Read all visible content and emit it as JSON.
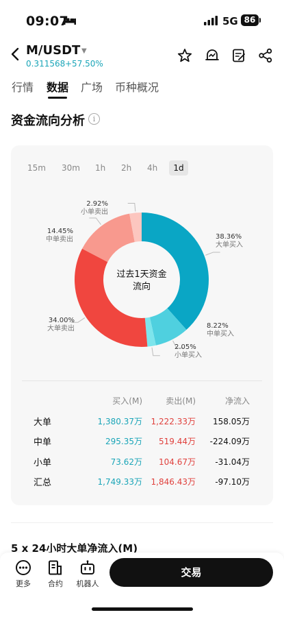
{
  "status": {
    "time": "09:07",
    "network": "5G",
    "battery": "86"
  },
  "header": {
    "pair": "M/USDT",
    "price": "0.311568",
    "change": "+57.50%",
    "icons": [
      "star-icon",
      "alert-icon",
      "note-icon",
      "share-icon"
    ]
  },
  "tabs": [
    {
      "label": "行情"
    },
    {
      "label": "数据"
    },
    {
      "label": "广场"
    },
    {
      "label": "币种概况"
    }
  ],
  "section": {
    "title": "资金流向分析",
    "info": "i"
  },
  "intervals": [
    "15m",
    "30m",
    "1h",
    "2h",
    "4h",
    "1d"
  ],
  "selected_interval": "1d",
  "donut": {
    "center_line1": "过去1天资金",
    "center_line2": "流向",
    "segments": [
      {
        "pct": "38.36%",
        "label": "大单买入",
        "value": 38.36,
        "color": "#0aa6c5"
      },
      {
        "pct": "8.22%",
        "label": "中单买入",
        "value": 8.22,
        "color": "#4fd0df"
      },
      {
        "pct": "2.05%",
        "label": "小单买入",
        "value": 2.05,
        "color": "#7de5ec"
      },
      {
        "pct": "34.00%",
        "label": "大单卖出",
        "value": 34.0,
        "color": "#f0463f"
      },
      {
        "pct": "14.45%",
        "label": "中单卖出",
        "value": 14.45,
        "color": "#f8998e"
      },
      {
        "pct": "2.92%",
        "label": "小单卖出",
        "value": 2.92,
        "color": "#fcc6bf"
      }
    ]
  },
  "table": {
    "headers": {
      "buy": "买入(M)",
      "sell": "卖出(M)",
      "net": "净流入"
    },
    "rows": [
      {
        "label": "大单",
        "buy": "1,380.37万",
        "sell": "1,222.33万",
        "net": "158.05万"
      },
      {
        "label": "中单",
        "buy": "295.35万",
        "sell": "519.44万",
        "net": "-224.09万"
      },
      {
        "label": "小单",
        "buy": "73.62万",
        "sell": "104.67万",
        "net": "-31.04万"
      },
      {
        "label": "汇总",
        "buy": "1,749.33万",
        "sell": "1,846.43万",
        "net": "-97.10万"
      }
    ]
  },
  "next_section": {
    "title": "5 x 24小时大单净流入(M)"
  },
  "bottom_bar": {
    "more": "更多",
    "contract": "合约",
    "robot": "机器人",
    "trade": "交易"
  }
}
